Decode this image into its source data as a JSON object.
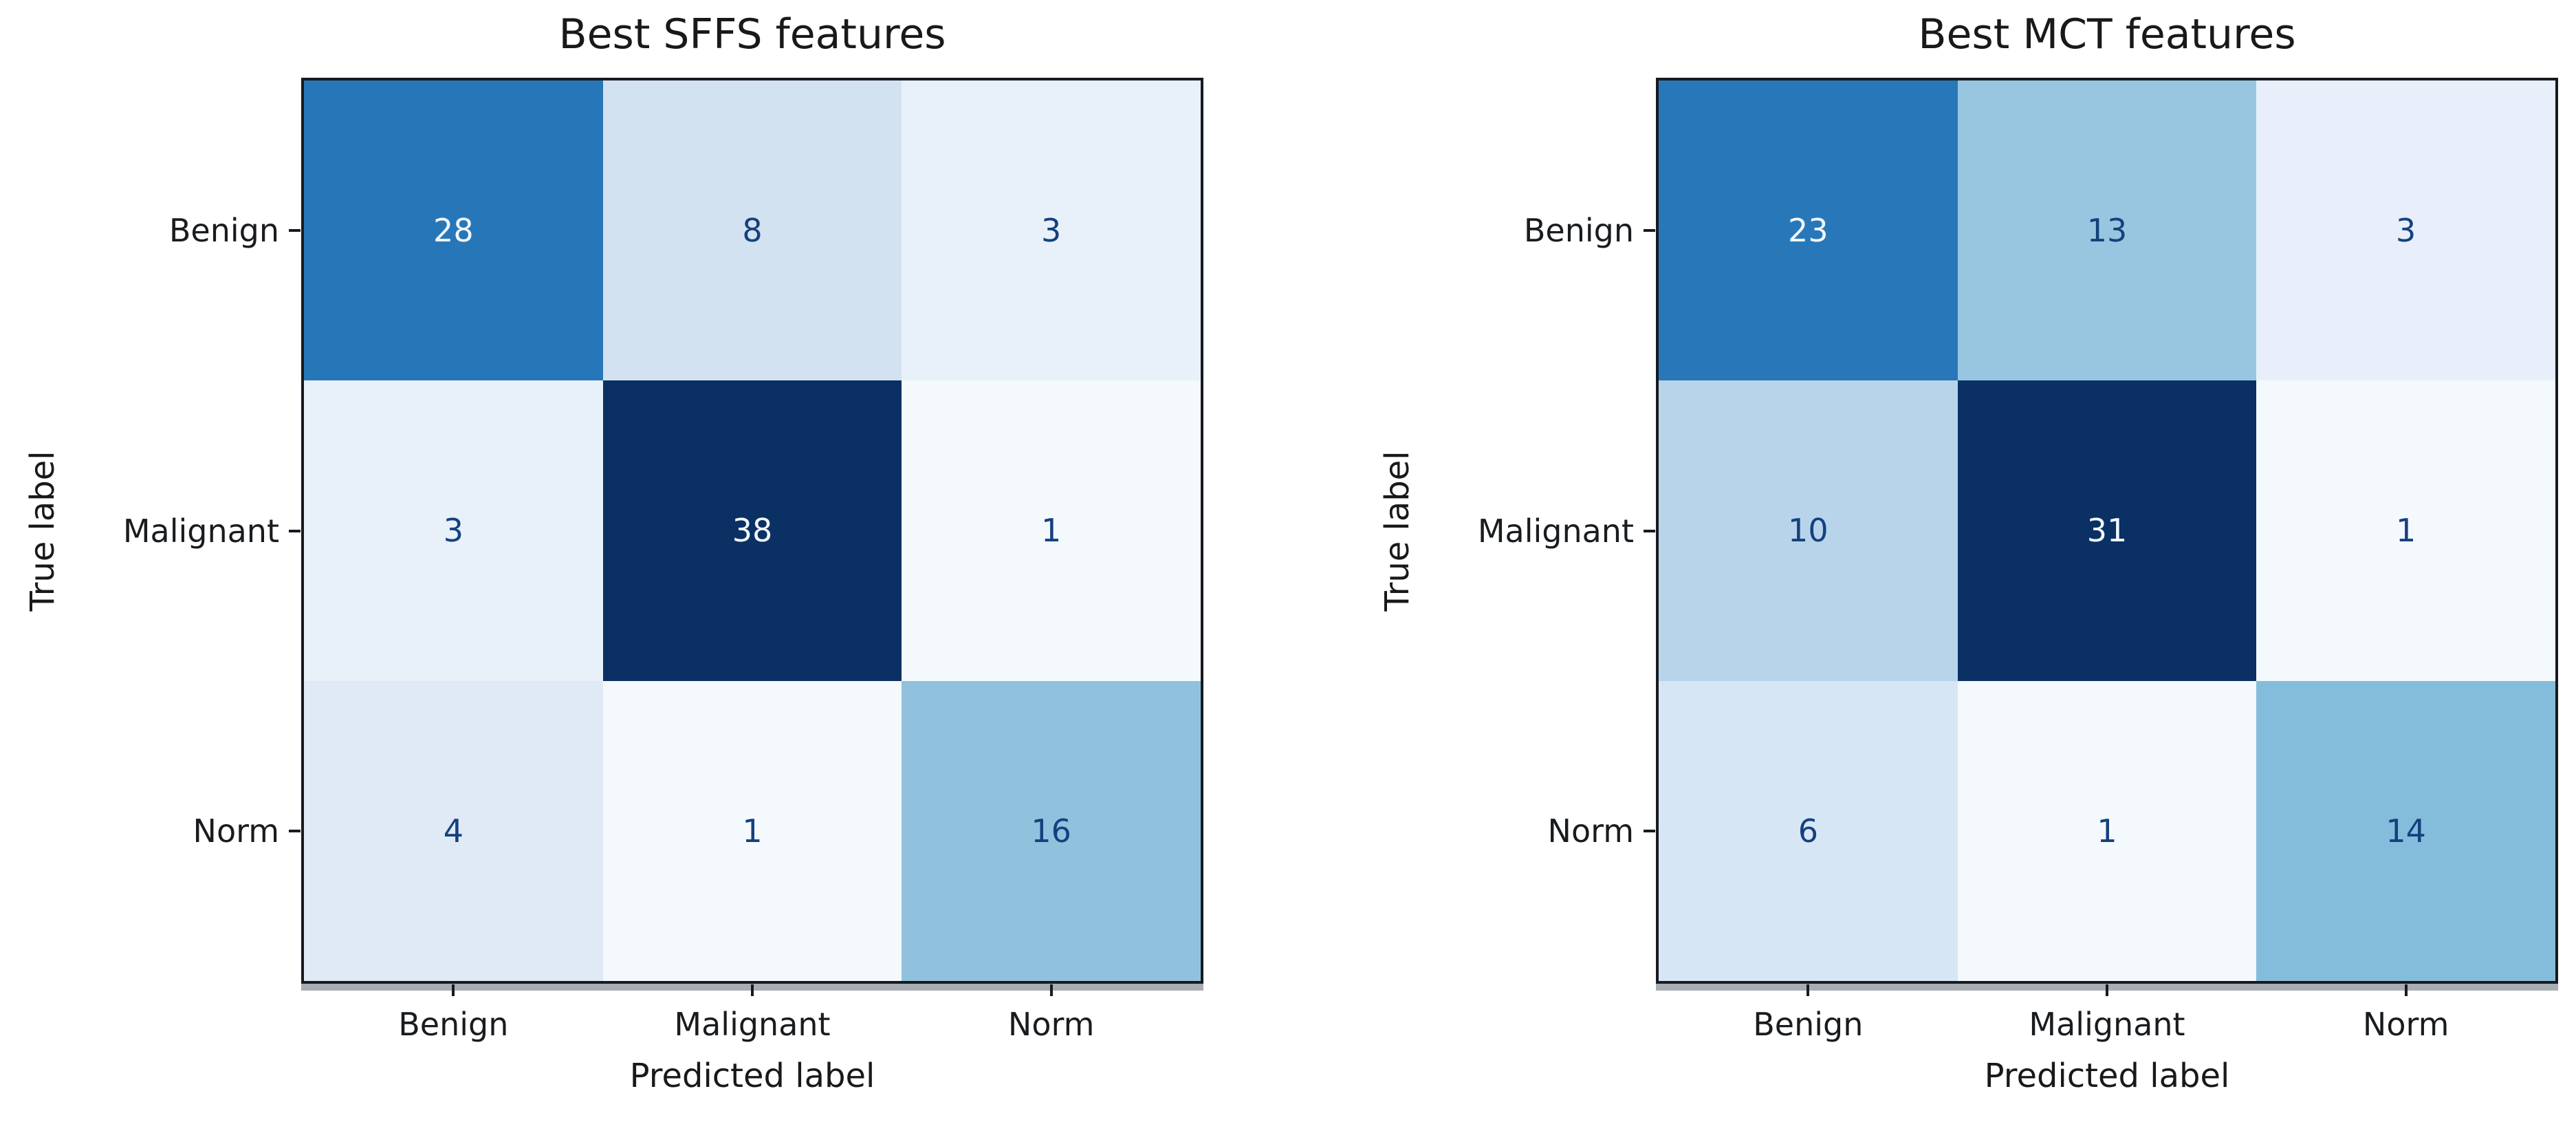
{
  "figure": {
    "background": "#ffffff",
    "spine_color": "#171a20",
    "text_color": "#191c1f",
    "colormap": "Blues"
  },
  "chart_data": [
    {
      "type": "heatmap",
      "title": "Best SFFS features",
      "xlabel": "Predicted label",
      "ylabel": "True label",
      "x_tick_labels": [
        "Benign",
        "Malignant",
        "Norm"
      ],
      "y_tick_labels": [
        "Benign",
        "Malignant",
        "Norm"
      ],
      "values": [
        [
          28,
          8,
          3
        ],
        [
          3,
          38,
          1
        ],
        [
          4,
          1,
          16
        ]
      ],
      "cell_colors": [
        [
          "#2777b8",
          "#d3e2f1",
          "#e8f0f9"
        ],
        [
          "#e8f0f9",
          "#0a3064",
          "#f4f9fd"
        ],
        [
          "#dfeaf6",
          "#f4f9fd",
          "#90c2de"
        ]
      ],
      "text_colors": [
        [
          "#f2f7fc",
          "#14417e",
          "#14417e"
        ],
        [
          "#14417e",
          "#f2f7fc",
          "#14417e"
        ],
        [
          "#14417e",
          "#14417e",
          "#14417e"
        ]
      ],
      "value_min": 1,
      "value_max": 38,
      "grid": false,
      "legend": "none"
    },
    {
      "type": "heatmap",
      "title": "Best MCT features",
      "xlabel": "Predicted label",
      "ylabel": "True label",
      "x_tick_labels": [
        "Benign",
        "Malignant",
        "Norm"
      ],
      "y_tick_labels": [
        "Benign",
        "Malignant",
        "Norm"
      ],
      "values": [
        [
          23,
          13,
          3
        ],
        [
          10,
          31,
          1
        ],
        [
          6,
          1,
          14
        ]
      ],
      "cell_colors": [
        [
          "#2878b9",
          "#98c6e0",
          "#e8effa"
        ],
        [
          "#b7d4ea",
          "#0a3064",
          "#f4f9fd"
        ],
        [
          "#d7e6f4",
          "#f4f9fd",
          "#84bddc"
        ]
      ],
      "text_colors": [
        [
          "#f2f7fc",
          "#14417e",
          "#14417e"
        ],
        [
          "#14417e",
          "#f2f7fc",
          "#14417e"
        ],
        [
          "#14417e",
          "#14417e",
          "#14417e"
        ]
      ],
      "value_min": 1,
      "value_max": 31,
      "grid": false,
      "legend": "none"
    }
  ]
}
